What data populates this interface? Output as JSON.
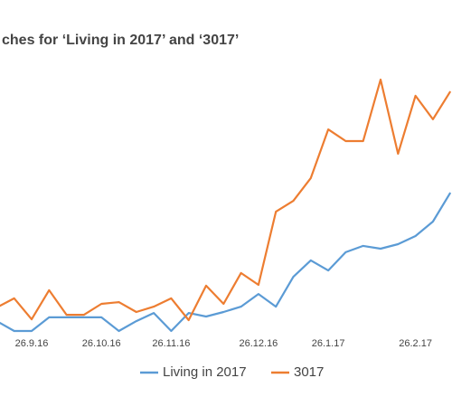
{
  "chart_data": {
    "type": "line",
    "title": "ches for ‘Living in 2017’ and ‘3017’",
    "categories": [
      null,
      null,
      "26.9.16",
      null,
      null,
      null,
      "26.10.16",
      null,
      null,
      null,
      "26.11.16",
      null,
      null,
      null,
      null,
      "26.12.16",
      null,
      null,
      null,
      "26.1.17",
      null,
      null,
      null,
      null,
      "26.2.17",
      null,
      null
    ],
    "series": [
      {
        "name": "Living in 2017",
        "color": "#5b9bd5",
        "values": [
          3.9,
          0,
          0,
          5.4,
          5.4,
          5.4,
          5.4,
          0,
          3.9,
          7.1,
          0,
          7.1,
          5.7,
          7.5,
          9.6,
          14.6,
          9.6,
          21.4,
          27.9,
          23.9,
          31.1,
          33.6,
          32.5,
          34.3,
          37.5,
          43.2,
          54.6
        ]
      },
      {
        "name": "3017",
        "color": "#ed7d31",
        "values": [
          9.3,
          12.9,
          4.6,
          16.1,
          6.4,
          6.4,
          10.7,
          11.4,
          7.5,
          9.6,
          12.9,
          4.3,
          17.9,
          10.7,
          22.9,
          18.2,
          47.1,
          51.4,
          60.4,
          79.6,
          75,
          75,
          99.3,
          70,
          92.9,
          83.6,
          94.6
        ]
      }
    ],
    "ylim": [
      0,
      100
    ],
    "legend": "bottom"
  }
}
